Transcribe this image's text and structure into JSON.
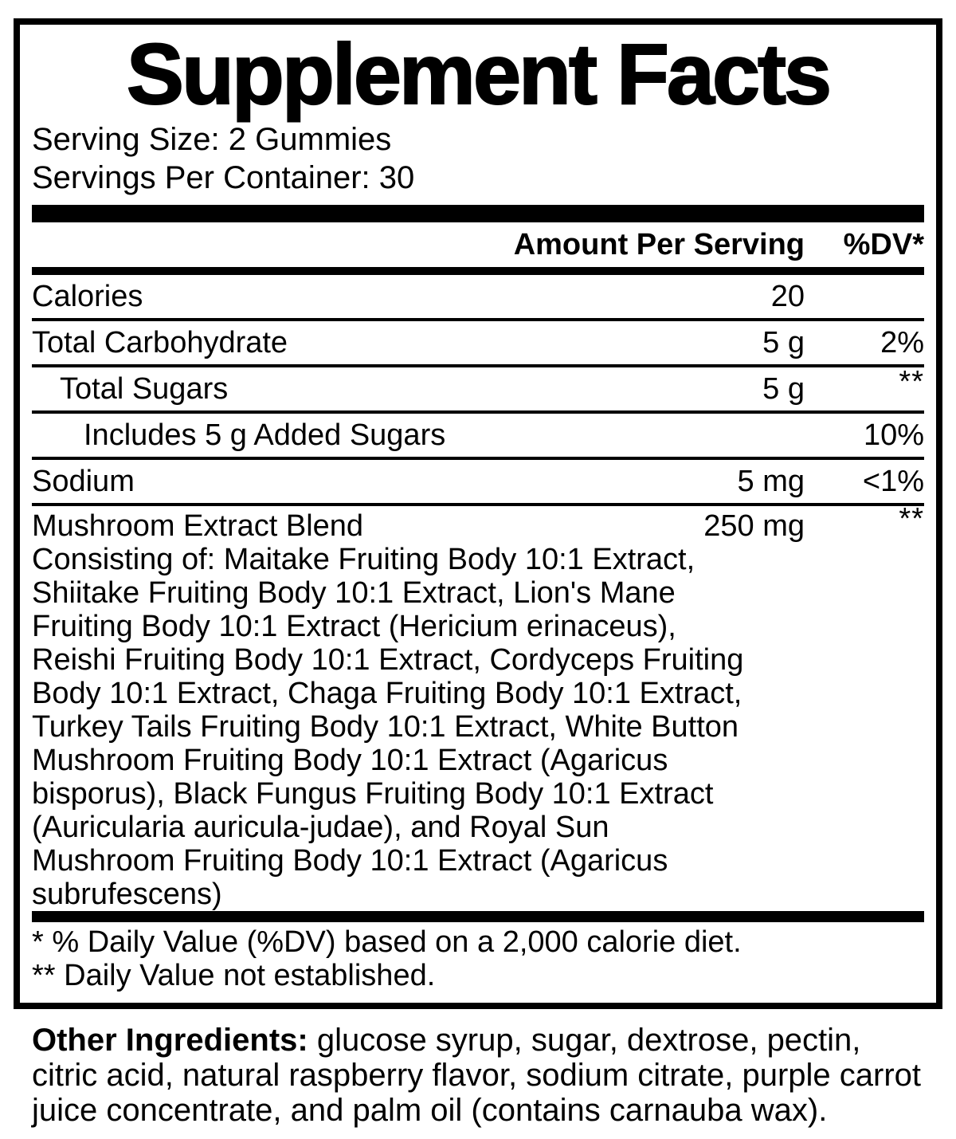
{
  "label": {
    "title": "Supplement Facts",
    "serving_size": "Serving Size: 2 Gummies",
    "servings_per_container": "Servings Per Container: 30",
    "columns": {
      "amount": "Amount Per Serving",
      "dv": "%DV*"
    },
    "rows": [
      {
        "name": "Calories",
        "amount": "20",
        "dv": ""
      },
      {
        "name": "Total Carbohydrate",
        "amount": "5 g",
        "dv": "2%"
      },
      {
        "name": "Total Sugars",
        "amount": "5 g",
        "dv": "**"
      },
      {
        "name": "Includes 5 g Added Sugars",
        "amount": "",
        "dv": "10%"
      },
      {
        "name": "Sodium",
        "amount": "5 mg",
        "dv": "<1%"
      }
    ],
    "blend": {
      "name": "Mushroom Extract Blend",
      "amount": "250 mg",
      "dv": "**",
      "description": "Consisting of: Maitake Fruiting Body 10:1 Extract, Shiitake Fruiting Body 10:1 Extract, Lion's Mane Fruiting Body 10:1 Extract (Hericium erinaceus), Reishi Fruiting Body 10:1 Extract, Cordyceps Fruiting Body 10:1 Extract, Chaga Fruiting Body 10:1 Extract, Turkey Tails Fruiting Body 10:1 Extract, White Button Mushroom Fruiting Body 10:1 Extract (Agaricus bisporus), Black Fungus Fruiting Body 10:1 Extract (Auricularia auricula-judae), and Royal Sun Mushroom Fruiting Body 10:1 Extract (Agaricus subrufescens)"
    },
    "footnotes": [
      "* % Daily Value (%DV) based on a 2,000 calorie diet.",
      "** Daily Value not established."
    ],
    "other_ingredients": {
      "label": "Other Ingredients:",
      "text": " glucose syrup, sugar, dextrose, pectin, citric acid, natural raspberry flavor, sodium citrate, purple carrot juice concentrate, and palm oil (contains carnauba wax)."
    }
  },
  "colors": {
    "ink": "#000000",
    "background": "#ffffff"
  }
}
